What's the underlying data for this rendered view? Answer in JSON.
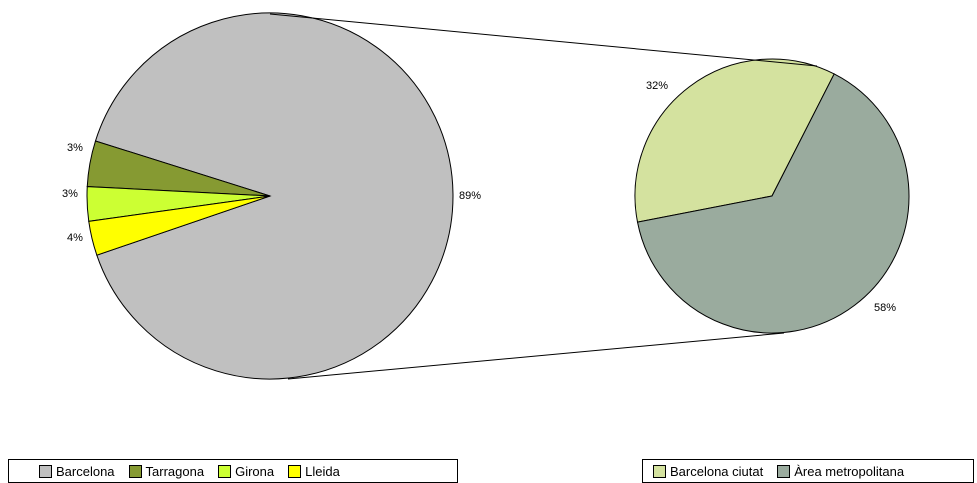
{
  "chart_data": [
    {
      "type": "pie",
      "series": [
        {
          "name": "Barcelona",
          "value": 89,
          "label": "89%",
          "color": "#c0c0c0"
        },
        {
          "name": "Tarragona",
          "value": 4,
          "label": "4%",
          "color": "#869a32"
        },
        {
          "name": "Girona",
          "value": 3,
          "label": "3%",
          "color": "#ccff33"
        },
        {
          "name": "Lleida",
          "value": 3,
          "label": "3%",
          "color": "#ffff00"
        }
      ],
      "legend": "bottom-left"
    },
    {
      "type": "pie",
      "series": [
        {
          "name": "Barcelona ciutat",
          "value": 32,
          "label": "32%",
          "color": "#d4e29f"
        },
        {
          "name": "Àrea metropolitana",
          "value": 58,
          "label": "58%",
          "color": "#9aab9e"
        }
      ],
      "legend": "bottom-right"
    }
  ]
}
